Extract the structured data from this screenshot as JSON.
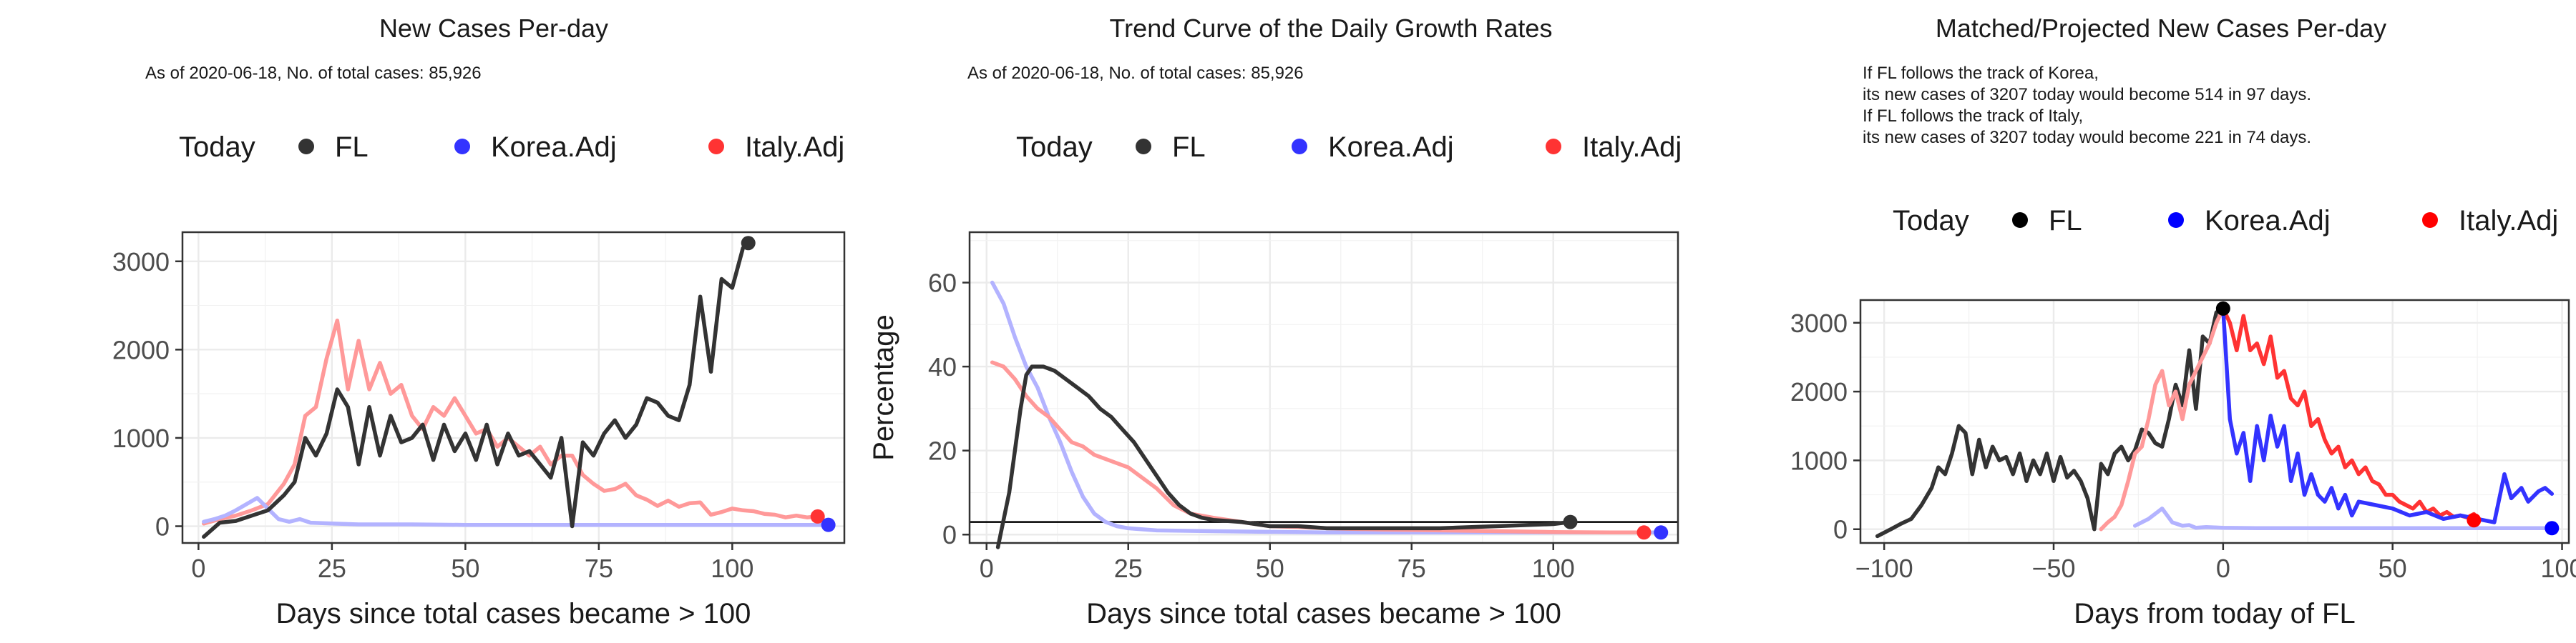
{
  "chart_data": [
    {
      "type": "line",
      "title": "New Cases Per-day",
      "subtitle": [
        "As of 2020-06-18, No. of total cases: 85,926"
      ],
      "xlabel": "Days since total cases became > 100",
      "ylabel": "",
      "xlim": [
        -3,
        121
      ],
      "ylim": [
        -190,
        3330
      ],
      "xticks": [
        0,
        25,
        50,
        75,
        100
      ],
      "yticks": [
        0,
        1000,
        2000,
        3000
      ],
      "legend": {
        "title": "Today",
        "entries": [
          "FL",
          "Korea.Adj",
          "Italy.Adj"
        ],
        "placement": "top"
      },
      "series": [
        {
          "name": "Italy.Adj",
          "color": "#ff9999",
          "x": [
            1,
            4,
            7,
            10,
            13,
            16,
            18,
            20,
            22,
            24,
            26,
            28,
            30,
            32,
            34,
            36,
            38,
            40,
            42,
            44,
            46,
            48,
            50,
            52,
            54,
            56,
            58,
            60,
            62,
            64,
            66,
            68,
            70,
            72,
            74,
            76,
            78,
            80,
            82,
            84,
            86,
            88,
            90,
            92,
            94,
            96,
            98,
            100,
            102,
            104,
            106,
            108,
            110,
            112,
            114,
            116
          ],
          "y": [
            30,
            80,
            120,
            180,
            250,
            480,
            700,
            1250,
            1350,
            1900,
            2330,
            1550,
            2100,
            1550,
            1850,
            1500,
            1600,
            1250,
            1100,
            1350,
            1250,
            1450,
            1250,
            1050,
            1100,
            900,
            1000,
            900,
            800,
            900,
            700,
            800,
            800,
            580,
            480,
            400,
            420,
            480,
            350,
            300,
            230,
            290,
            220,
            260,
            270,
            130,
            160,
            200,
            180,
            170,
            140,
            130,
            100,
            120,
            100,
            110
          ]
        },
        {
          "name": "Korea.Adj",
          "color": "#b3b3ff",
          "x": [
            1,
            3,
            5,
            7,
            9,
            11,
            13,
            15,
            17,
            19,
            21,
            25,
            30,
            40,
            50,
            60,
            70,
            80,
            90,
            100,
            110,
            118
          ],
          "y": [
            50,
            80,
            120,
            180,
            250,
            320,
            200,
            80,
            50,
            80,
            40,
            30,
            20,
            20,
            15,
            15,
            15,
            15,
            15,
            15,
            15,
            15
          ]
        },
        {
          "name": "FL",
          "color": "#333333",
          "x": [
            1,
            4,
            7,
            10,
            13,
            16,
            18,
            20,
            22,
            24,
            26,
            28,
            30,
            32,
            34,
            36,
            38,
            40,
            42,
            44,
            46,
            48,
            50,
            52,
            54,
            56,
            58,
            60,
            62,
            64,
            66,
            68,
            70,
            72,
            74,
            76,
            78,
            80,
            82,
            84,
            86,
            88,
            90,
            92,
            94,
            96,
            98,
            100,
            102,
            103
          ],
          "y": [
            -120,
            40,
            60,
            120,
            180,
            350,
            500,
            1000,
            800,
            1050,
            1550,
            1350,
            700,
            1350,
            800,
            1250,
            950,
            1000,
            1150,
            750,
            1150,
            850,
            1050,
            750,
            1150,
            700,
            1050,
            800,
            850,
            700,
            550,
            1000,
            0,
            950,
            800,
            1050,
            1200,
            1000,
            1150,
            1450,
            1400,
            1250,
            1200,
            1600,
            2600,
            1750,
            2800,
            2700,
            3150,
            3207
          ]
        }
      ],
      "today_points": [
        {
          "name": "FL",
          "x": 103,
          "y": 3207,
          "color": "#333333"
        },
        {
          "name": "Italy.Adj",
          "x": 116,
          "y": 110,
          "color": "#ff3333"
        },
        {
          "name": "Korea.Adj",
          "x": 118,
          "y": 15,
          "color": "#3333ff"
        }
      ]
    },
    {
      "type": "line",
      "title": "Trend Curve of the Daily Growth Rates",
      "subtitle": [
        "As of 2020-06-18, No. of total cases: 85,926"
      ],
      "xlabel": "Days since total cases became > 100",
      "ylabel": "Percentage",
      "xlim": [
        -3,
        122
      ],
      "ylim": [
        -2,
        72
      ],
      "xticks": [
        0,
        25,
        50,
        75,
        100
      ],
      "yticks": [
        0,
        20,
        40,
        60
      ],
      "hline": 3,
      "legend": {
        "title": "Today",
        "entries": [
          "FL",
          "Korea.Adj",
          "Italy.Adj"
        ],
        "placement": "top"
      },
      "series": [
        {
          "name": "Korea.Adj",
          "color": "#b3b3ff",
          "x": [
            1,
            3,
            5,
            7,
            9,
            11,
            13,
            15,
            17,
            19,
            21,
            23,
            25,
            30,
            40,
            60,
            80,
            100,
            118
          ],
          "y": [
            60,
            55,
            47,
            40,
            35,
            28,
            22,
            15,
            9,
            5,
            3,
            2,
            1.5,
            1,
            0.8,
            0.5,
            0.5,
            0.5,
            0.5
          ]
        },
        {
          "name": "Italy.Adj",
          "color": "#ff9999",
          "x": [
            1,
            3,
            5,
            7,
            9,
            11,
            13,
            15,
            17,
            19,
            21,
            23,
            25,
            27,
            30,
            33,
            36,
            40,
            45,
            50,
            55,
            60,
            70,
            80,
            90,
            100,
            110,
            116
          ],
          "y": [
            41,
            40,
            37,
            33,
            30,
            28,
            25,
            22,
            21,
            19,
            18,
            17,
            16,
            14,
            11,
            7,
            5,
            4,
            3,
            2,
            1.8,
            1.5,
            1.2,
            1,
            0.8,
            0.6,
            0.5,
            0.5
          ]
        },
        {
          "name": "FL",
          "color": "#333333",
          "x": [
            2,
            4,
            6,
            7,
            8,
            10,
            12,
            14,
            16,
            18,
            20,
            22,
            24,
            26,
            28,
            30,
            32,
            34,
            36,
            38,
            40,
            45,
            50,
            55,
            60,
            70,
            80,
            90,
            100,
            103
          ],
          "y": [
            -3,
            10,
            30,
            38,
            40,
            40,
            39,
            37,
            35,
            33,
            30,
            28,
            25,
            22,
            18,
            14,
            10,
            7,
            5,
            4,
            3.5,
            3,
            2,
            2,
            1.5,
            1.5,
            1.5,
            2,
            2.5,
            3
          ]
        }
      ],
      "today_points": [
        {
          "name": "FL",
          "x": 103,
          "y": 3,
          "color": "#333333"
        },
        {
          "name": "Italy.Adj",
          "x": 116,
          "y": 0.5,
          "color": "#ff3333"
        },
        {
          "name": "Korea.Adj",
          "x": 119,
          "y": 0.5,
          "color": "#3333ff"
        }
      ]
    },
    {
      "type": "line",
      "title": "Matched/Projected New Cases Per-day",
      "subtitle": [
        "If FL follows the track of Korea,",
        "its new cases of 3207 today would become 514 in 97 days.",
        "If FL follows the track of Italy,",
        "its new cases of 3207 today would become 221 in 74 days."
      ],
      "xlabel": "Days from today of FL",
      "ylabel": "",
      "xlim": [
        -107,
        102
      ],
      "ylim": [
        -200,
        3330
      ],
      "xticks": [
        -100,
        -50,
        0,
        50,
        100
      ],
      "yticks": [
        0,
        1000,
        2000,
        3000
      ],
      "legend": {
        "title": "Today",
        "entries": [
          "FL",
          "Korea.Adj",
          "Italy.Adj"
        ],
        "placement": "top"
      },
      "series": [
        {
          "name": "FL",
          "color": "#333333",
          "x": [
            -102,
            -98,
            -95,
            -92,
            -89,
            -86,
            -84,
            -82,
            -80,
            -78,
            -76,
            -74,
            -72,
            -70,
            -68,
            -66,
            -64,
            -62,
            -60,
            -58,
            -56,
            -54,
            -52,
            -50,
            -48,
            -46,
            -44,
            -42,
            -40,
            -38,
            -36,
            -34,
            -32,
            -30,
            -28,
            -26,
            -24,
            -22,
            -20,
            -18,
            -16,
            -14,
            -12,
            -10,
            -8,
            -6,
            -4,
            -2,
            0
          ],
          "y": [
            -100,
            0,
            80,
            150,
            350,
            600,
            900,
            800,
            1100,
            1500,
            1400,
            800,
            1300,
            900,
            1200,
            1000,
            1050,
            800,
            1100,
            700,
            1000,
            800,
            1100,
            700,
            1050,
            750,
            850,
            700,
            450,
            0,
            950,
            800,
            1100,
            1200,
            1000,
            1150,
            1450,
            1400,
            1250,
            1200,
            1600,
            2100,
            1800,
            2600,
            1750,
            2800,
            2700,
            3150,
            3207
          ]
        },
        {
          "name": "Italy.Adj (matched)",
          "color": "#ff9999",
          "x": [
            -36,
            -34,
            -32,
            -30,
            -28,
            -26,
            -24,
            -22,
            -20,
            -18,
            -16,
            -14,
            -12,
            -10,
            -8,
            -6,
            -4,
            -2,
            0
          ],
          "y": [
            0,
            100,
            180,
            350,
            700,
            1100,
            1200,
            1600,
            2100,
            2300,
            1800,
            2000,
            1600,
            2100,
            2300,
            2500,
            2700,
            3000,
            3207
          ]
        },
        {
          "name": "Korea.Adj (matched)",
          "color": "#b3b3ff",
          "x": [
            -26,
            -22,
            -18,
            -15,
            -12,
            -10,
            -8,
            -5,
            0,
            10,
            20,
            40,
            60,
            80,
            96
          ],
          "y": [
            50,
            150,
            300,
            100,
            50,
            60,
            20,
            30,
            20,
            15,
            15,
            15,
            15,
            15,
            15
          ]
        },
        {
          "name": "Italy.Adj (projected)",
          "color": "#ff3333",
          "x": [
            0,
            2,
            4,
            6,
            8,
            10,
            12,
            14,
            16,
            18,
            20,
            22,
            24,
            26,
            28,
            30,
            32,
            34,
            36,
            38,
            40,
            42,
            44,
            46,
            48,
            50,
            52,
            54,
            56,
            58,
            60,
            62,
            64,
            66,
            68,
            70,
            72,
            74
          ],
          "y": [
            3207,
            3000,
            2600,
            3100,
            2600,
            2700,
            2400,
            2800,
            2200,
            2300,
            1900,
            1800,
            2000,
            1500,
            1600,
            1300,
            1100,
            1200,
            900,
            1000,
            800,
            900,
            700,
            650,
            500,
            500,
            400,
            350,
            300,
            400,
            250,
            300,
            200,
            250,
            180,
            200,
            170,
            221
          ]
        },
        {
          "name": "Korea.Adj (projected)",
          "color": "#3333ff",
          "x": [
            0,
            2,
            4,
            6,
            8,
            10,
            12,
            14,
            16,
            18,
            20,
            22,
            24,
            26,
            28,
            30,
            32,
            34,
            36,
            38,
            40,
            45,
            50,
            55,
            60,
            65,
            70,
            75,
            80,
            83,
            85,
            88,
            90,
            93,
            95,
            97
          ],
          "y": [
            3207,
            1600,
            1100,
            1400,
            700,
            1500,
            1000,
            1650,
            1200,
            1500,
            700,
            1100,
            500,
            800,
            500,
            400,
            600,
            300,
            500,
            200,
            400,
            350,
            300,
            200,
            250,
            150,
            200,
            150,
            100,
            800,
            450,
            600,
            400,
            550,
            600,
            514
          ]
        }
      ],
      "today_points": [
        {
          "name": "FL",
          "x": 0,
          "y": 3207,
          "color": "#000000"
        },
        {
          "name": "Italy.Adj",
          "x": 74,
          "y": 130,
          "color": "#ff0000"
        },
        {
          "name": "Korea.Adj",
          "x": 97,
          "y": 15,
          "color": "#0000ff"
        }
      ]
    }
  ]
}
